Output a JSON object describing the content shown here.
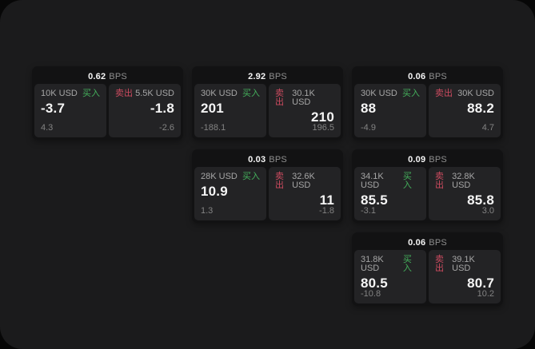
{
  "colors": {
    "surface": "#1b1b1c",
    "card_bg": "#121213",
    "panel_bg": "#232325",
    "buy": "#44b05c",
    "sell": "#cd4b60",
    "value": "#f5f5f5",
    "label": "#a6a6a6",
    "sub": "#838383",
    "unit": "#8f8f8f"
  },
  "unit_label": "BPS",
  "cards": [
    {
      "bps": "0.62",
      "buy": {
        "size": "10K USD",
        "label": "买入",
        "price": "-3.7",
        "change": "4.3"
      },
      "sell": {
        "label": "卖出",
        "size": "5.5K USD",
        "price": "-1.8",
        "change": "-2.6"
      }
    },
    {
      "bps": "2.92",
      "buy": {
        "size": "30K USD",
        "label": "买入",
        "price": "201",
        "change": "-188.1"
      },
      "sell": {
        "label": "卖出",
        "size": "30.1K USD",
        "price": "210",
        "change": "196.5"
      }
    },
    {
      "bps": "0.06",
      "buy": {
        "size": "30K USD",
        "label": "买入",
        "price": "88",
        "change": "-4.9"
      },
      "sell": {
        "label": "卖出",
        "size": "30K USD",
        "price": "88.2",
        "change": "4.7"
      }
    },
    {
      "bps": "0.03",
      "buy": {
        "size": "28K USD",
        "label": "买入",
        "price": "10.9",
        "change": "1.3"
      },
      "sell": {
        "label": "卖出",
        "size": "32.6K USD",
        "price": "11",
        "change": "-1.8"
      }
    },
    {
      "bps": "0.09",
      "buy": {
        "size": "34.1K USD",
        "label": "买入",
        "price": "85.5",
        "change": "-3.1"
      },
      "sell": {
        "label": "卖出",
        "size": "32.8K USD",
        "price": "85.8",
        "change": "3.0"
      }
    },
    {
      "bps": "0.06",
      "buy": {
        "size": "31.8K USD",
        "label": "买入",
        "price": "80.5",
        "change": "-10.8"
      },
      "sell": {
        "label": "卖出",
        "size": "39.1K USD",
        "price": "80.7",
        "change": "10.2"
      }
    }
  ]
}
